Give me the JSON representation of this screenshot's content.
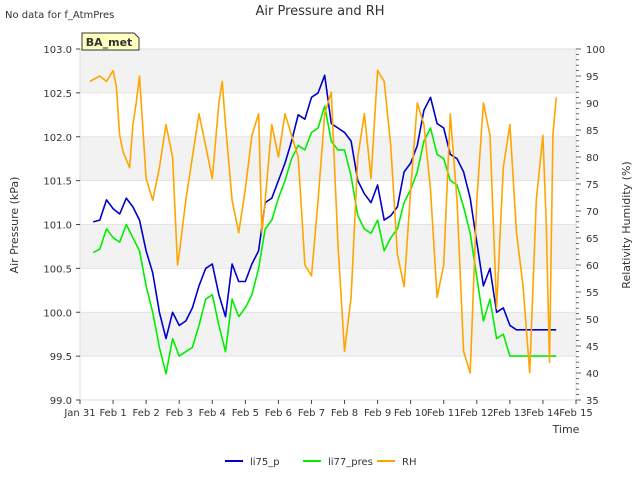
{
  "chart_data": {
    "type": "line",
    "title": "Air Pressure and RH",
    "note": "No data for f_AtmPres",
    "site_badge": "BA_met",
    "xlabel": "Time",
    "ylabel_left": "Air Pressure (kPa)",
    "ylabel_right": "Relativity Humidity (%)",
    "x_categories": [
      "Jan 31",
      "Feb 1",
      "Feb 2",
      "Feb 3",
      "Feb 4",
      "Feb 5",
      "Feb 6",
      "Feb 7",
      "Feb 8",
      "Feb 9",
      "Feb 10",
      "Feb 11",
      "Feb 12",
      "Feb 13",
      "Feb 14",
      "Feb 15"
    ],
    "ylim_left": [
      99.0,
      103.0
    ],
    "yticks_left": [
      "99.0",
      "99.5",
      "100.0",
      "100.5",
      "101.0",
      "101.5",
      "102.0",
      "102.5",
      "103.0"
    ],
    "ylim_right": [
      35,
      100
    ],
    "yticks_right": [
      "35",
      "40",
      "45",
      "50",
      "55",
      "60",
      "65",
      "70",
      "75",
      "80",
      "85",
      "90",
      "95",
      "100"
    ],
    "grid": "horizontal bands",
    "legend_position": "bottom",
    "series": [
      {
        "name": "li75_p",
        "color": "#0000cc",
        "axis": "left",
        "x": [
          0.4,
          0.6,
          0.8,
          1.0,
          1.2,
          1.4,
          1.6,
          1.8,
          2.0,
          2.2,
          2.4,
          2.6,
          2.8,
          3.0,
          3.2,
          3.4,
          3.6,
          3.8,
          4.0,
          4.2,
          4.4,
          4.6,
          4.8,
          5.0,
          5.2,
          5.4,
          5.6,
          5.8,
          6.0,
          6.2,
          6.4,
          6.6,
          6.8,
          7.0,
          7.2,
          7.4,
          7.6,
          7.8,
          8.0,
          8.2,
          8.4,
          8.6,
          8.8,
          9.0,
          9.2,
          9.4,
          9.6,
          9.8,
          10.0,
          10.2,
          10.4,
          10.6,
          10.8,
          11.0,
          11.2,
          11.4,
          11.6,
          11.8,
          12.0,
          12.2,
          12.4,
          12.6,
          12.8,
          13.0,
          13.2,
          13.4,
          13.6,
          13.8,
          14.0,
          14.2,
          14.4
        ],
        "y": [
          101.03,
          101.05,
          101.28,
          101.18,
          101.12,
          101.3,
          101.2,
          101.05,
          100.7,
          100.45,
          100.0,
          99.7,
          100.0,
          99.85,
          99.9,
          100.05,
          100.3,
          100.5,
          100.55,
          100.2,
          99.95,
          100.55,
          100.35,
          100.35,
          100.55,
          100.7,
          101.25,
          101.3,
          101.5,
          101.7,
          101.95,
          102.25,
          102.2,
          102.45,
          102.5,
          102.7,
          102.15,
          102.1,
          102.05,
          101.95,
          101.5,
          101.35,
          101.25,
          101.45,
          101.05,
          101.1,
          101.2,
          101.6,
          101.7,
          101.9,
          102.3,
          102.45,
          102.15,
          102.1,
          101.8,
          101.75,
          101.6,
          101.3,
          100.8,
          100.3,
          100.5,
          100.0,
          100.05,
          99.85,
          99.8,
          99.8,
          99.8,
          99.8,
          99.8,
          99.8,
          99.8
        ]
      },
      {
        "name": "li77_pres",
        "color": "#00ee00",
        "axis": "left",
        "x": [
          0.4,
          0.6,
          0.8,
          1.0,
          1.2,
          1.4,
          1.6,
          1.8,
          2.0,
          2.2,
          2.4,
          2.6,
          2.8,
          3.0,
          3.2,
          3.4,
          3.6,
          3.8,
          4.0,
          4.2,
          4.4,
          4.6,
          4.8,
          5.0,
          5.2,
          5.4,
          5.6,
          5.8,
          6.0,
          6.2,
          6.4,
          6.6,
          6.8,
          7.0,
          7.2,
          7.4,
          7.6,
          7.8,
          8.0,
          8.2,
          8.4,
          8.6,
          8.8,
          9.0,
          9.2,
          9.4,
          9.6,
          9.8,
          10.0,
          10.2,
          10.4,
          10.6,
          10.8,
          11.0,
          11.2,
          11.4,
          11.6,
          11.8,
          12.0,
          12.2,
          12.4,
          12.6,
          12.8,
          13.0,
          13.2,
          13.4,
          13.6,
          13.8,
          14.0,
          14.2,
          14.4
        ],
        "y": [
          100.68,
          100.72,
          100.95,
          100.85,
          100.8,
          101.0,
          100.85,
          100.7,
          100.3,
          100.0,
          99.6,
          99.3,
          99.7,
          99.5,
          99.55,
          99.6,
          99.85,
          100.15,
          100.2,
          99.85,
          99.55,
          100.15,
          99.95,
          100.05,
          100.2,
          100.5,
          100.95,
          101.05,
          101.3,
          101.5,
          101.75,
          101.9,
          101.85,
          102.05,
          102.1,
          102.35,
          101.95,
          101.85,
          101.85,
          101.55,
          101.1,
          100.95,
          100.9,
          101.05,
          100.7,
          100.85,
          100.95,
          101.25,
          101.4,
          101.6,
          101.95,
          102.1,
          101.8,
          101.75,
          101.5,
          101.45,
          101.2,
          100.9,
          100.4,
          99.9,
          100.15,
          99.7,
          99.75,
          99.5,
          99.5,
          99.5,
          99.5,
          99.5,
          99.5,
          99.5,
          99.5
        ]
      },
      {
        "name": "RH",
        "color": "#ffa500",
        "axis": "right",
        "x": [
          0.3,
          0.6,
          0.8,
          1.0,
          1.1,
          1.2,
          1.3,
          1.5,
          1.6,
          1.7,
          1.8,
          2.0,
          2.2,
          2.4,
          2.6,
          2.8,
          2.95,
          3.0,
          3.2,
          3.4,
          3.6,
          3.8,
          4.0,
          4.2,
          4.3,
          4.4,
          4.6,
          4.8,
          5.0,
          5.2,
          5.4,
          5.5,
          5.6,
          5.8,
          6.0,
          6.2,
          6.4,
          6.6,
          6.8,
          7.0,
          7.2,
          7.4,
          7.6,
          7.8,
          8.0,
          8.2,
          8.4,
          8.6,
          8.8,
          9.0,
          9.2,
          9.4,
          9.6,
          9.8,
          10.0,
          10.2,
          10.4,
          10.6,
          10.8,
          11.0,
          11.2,
          11.4,
          11.6,
          11.8,
          12.0,
          12.2,
          12.4,
          12.6,
          12.8,
          13.0,
          13.2,
          13.4,
          13.6,
          13.8,
          14.0,
          14.1,
          14.2,
          14.3,
          14.4
        ],
        "y": [
          94,
          95,
          94,
          96,
          93,
          84,
          81,
          78,
          86,
          90,
          95,
          76,
          72,
          78,
          86,
          80,
          60,
          62,
          72,
          80,
          88,
          82,
          76,
          90,
          94,
          86,
          72,
          66,
          74,
          84,
          88,
          66,
          72,
          86,
          80,
          88,
          84,
          80,
          60,
          58,
          72,
          88,
          92,
          64,
          44,
          54,
          80,
          88,
          76,
          96,
          94,
          82,
          62,
          56,
          74,
          90,
          86,
          74,
          54,
          60,
          88,
          72,
          44,
          40,
          72,
          90,
          84,
          52,
          78,
          86,
          66,
          56,
          40,
          72,
          84,
          68,
          42,
          84,
          91
        ]
      }
    ],
    "legend": [
      "li75_p",
      "li77_pres",
      "RH"
    ]
  }
}
